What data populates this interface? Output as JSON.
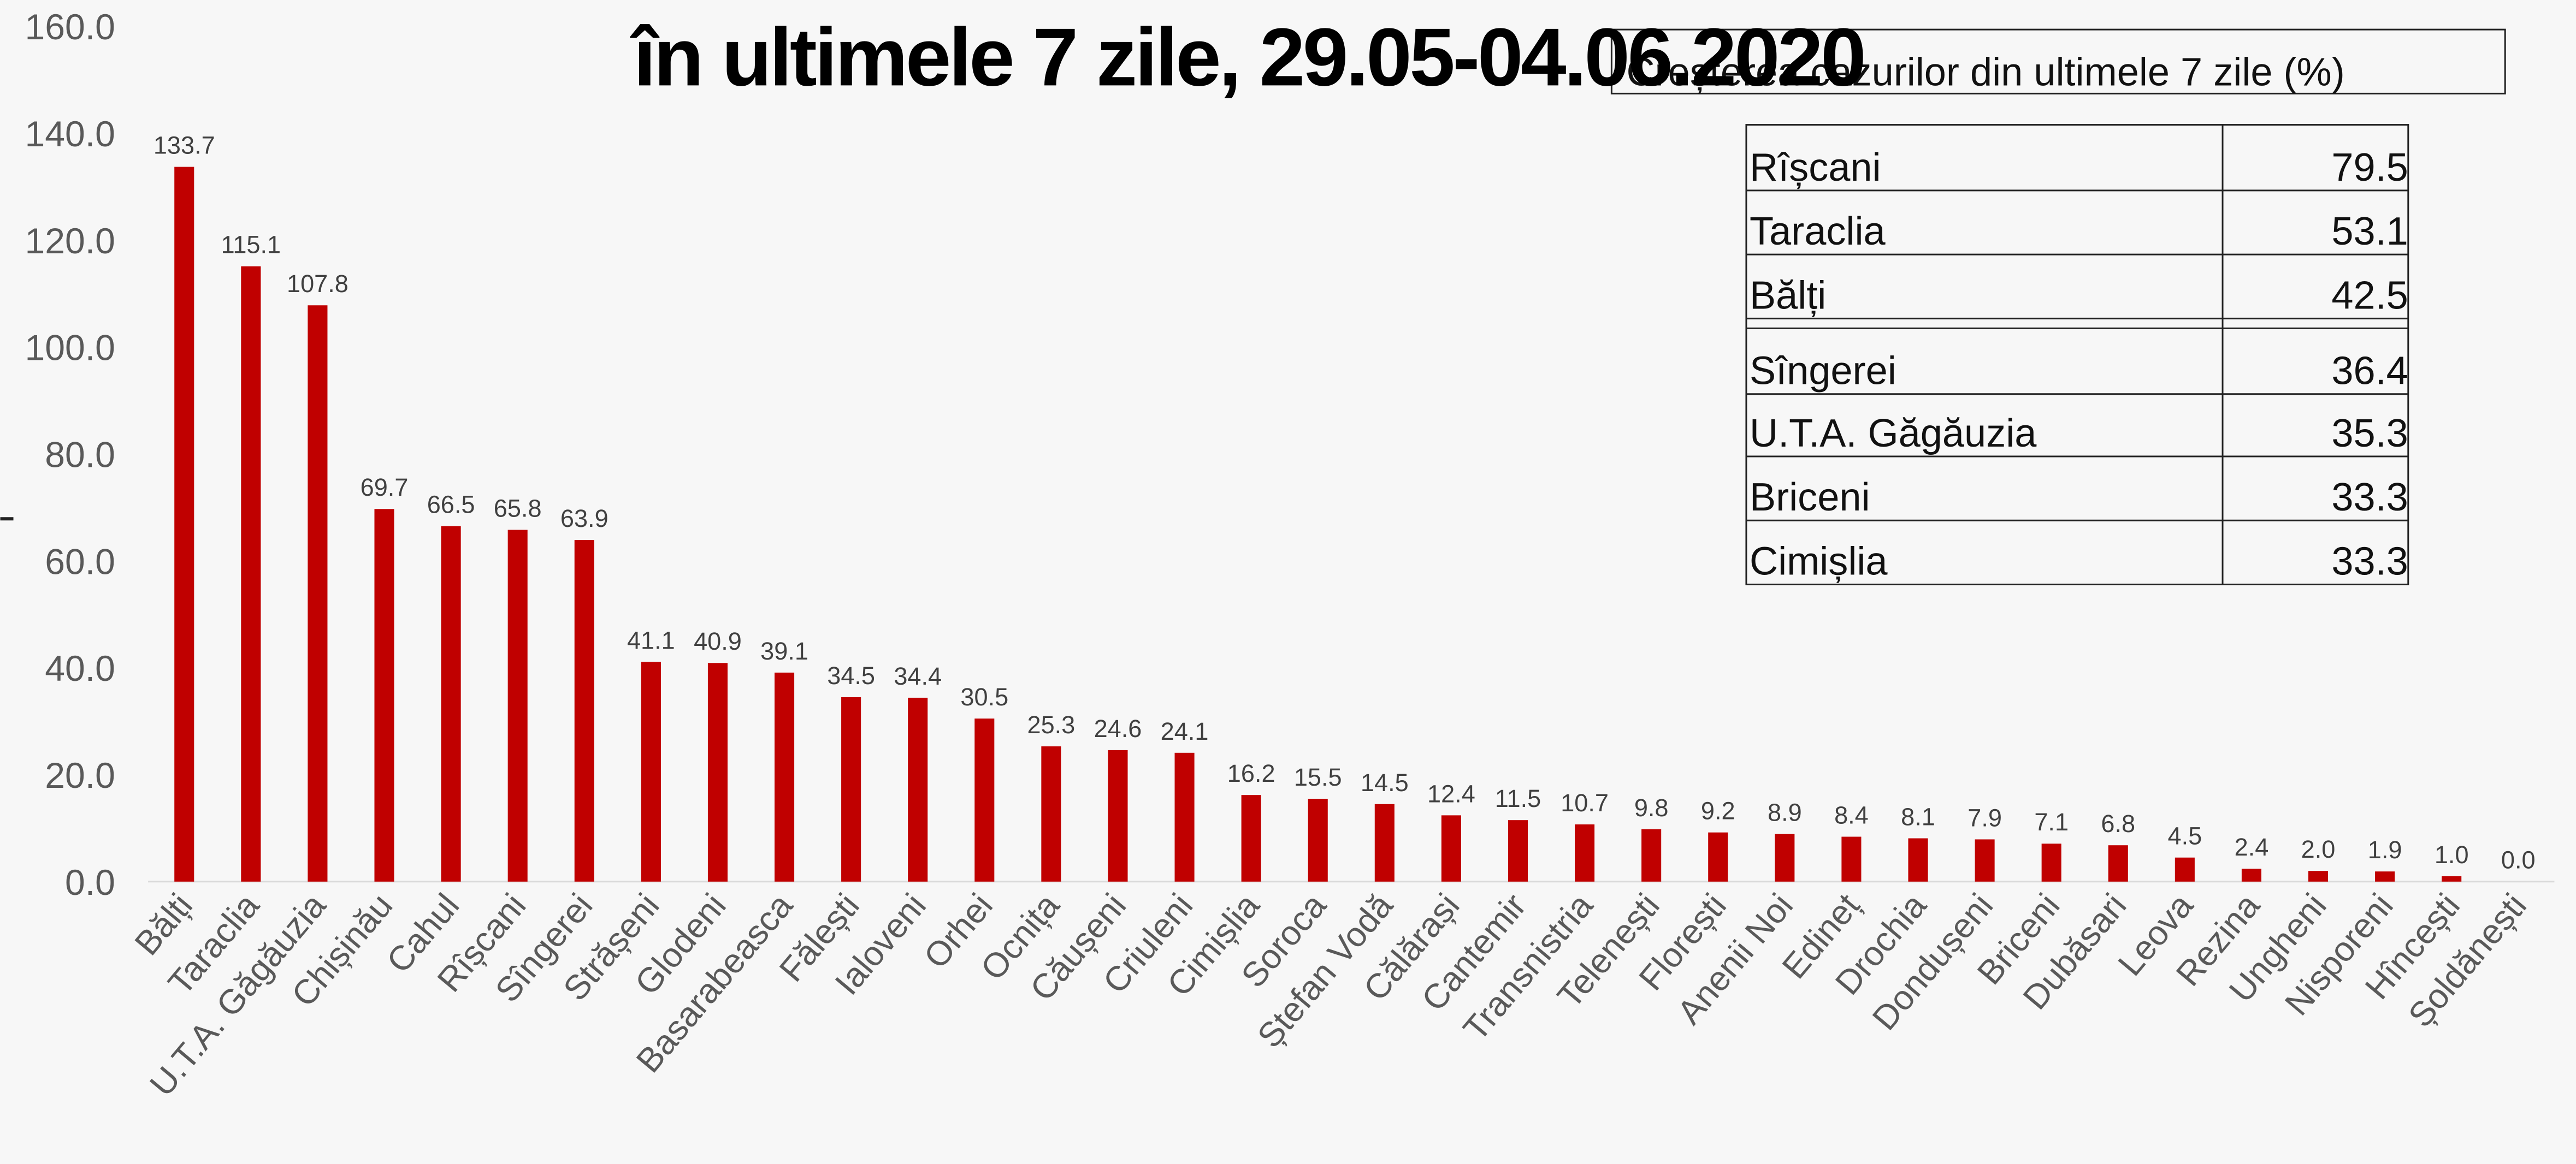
{
  "chart_data": {
    "type": "bar",
    "title": "în ultimele  7 zile,  29.05-04.06.2020",
    "categories": [
      "Bălți",
      "Taraclia",
      "U.T.A. Găgăuzia",
      "Chișinău",
      "Cahul",
      "Rîșcani",
      "Sîngerei",
      "Strășeni",
      "Glodeni",
      "Basarabeasca",
      "Fălești",
      "Ialoveni",
      "Orhei",
      "Ocnița",
      "Căușeni",
      "Criuleni",
      "Cimișlia",
      "Soroca",
      "Ștefan Vodă",
      "Călărași",
      "Cantemir",
      "Transnistria",
      "Telenești",
      "Florești",
      "Anenii Noi",
      "Edineț",
      "Drochia",
      "Dondușeni",
      "Briceni",
      "Dubăsari",
      "Leova",
      "Rezina",
      "Ungheni",
      "Nisporeni",
      "Hîncești",
      "Șoldănești"
    ],
    "values": [
      133.7,
      115.1,
      107.8,
      69.7,
      66.5,
      65.8,
      63.9,
      41.1,
      40.9,
      39.1,
      34.5,
      34.4,
      30.5,
      25.3,
      24.6,
      24.1,
      16.2,
      15.5,
      14.5,
      12.4,
      11.5,
      10.7,
      9.8,
      9.2,
      8.9,
      8.4,
      8.1,
      7.9,
      7.1,
      6.8,
      4.5,
      2.4,
      2.0,
      1.9,
      1.0,
      0.0
    ],
    "value_labels": [
      "133.7",
      "115.1",
      "107.8",
      "69.7",
      "66.5",
      "65.8",
      "63.9",
      "41.1",
      "40.9",
      "39.1",
      "34.5",
      "34.4",
      "30.5",
      "25.3",
      "24.6",
      "24.1",
      "16.2",
      "15.5",
      "14.5",
      "12.4",
      "11.5",
      "10.7",
      "9.8",
      "9.2",
      "8.9",
      "8.4",
      "8.1",
      "7.9",
      "7.1",
      "6.8",
      "4.5",
      "2.4",
      "2.0",
      "1.9",
      "1.0",
      "0.0"
    ],
    "color": "#c00000",
    "ylim": [
      0,
      160
    ],
    "yticks": [
      {
        "value": 0,
        "label": "0.0"
      },
      {
        "value": 20,
        "label": "20.0"
      },
      {
        "value": 40,
        "label": "40.0"
      },
      {
        "value": 60,
        "label": "60.0"
      },
      {
        "value": 80,
        "label": "80.0"
      },
      {
        "value": 100,
        "label": "100.0"
      },
      {
        "value": 120,
        "label": "120.0"
      },
      {
        "value": 140,
        "label": "140.0"
      },
      {
        "value": 160,
        "label": "160.0"
      }
    ],
    "grid": false
  },
  "table": {
    "title": "Creșterea cazurilor din ultimele 7 zile (%)",
    "rows": [
      [
        "Rîșcani",
        "79.5"
      ],
      [
        "Taraclia",
        "53.1"
      ],
      [
        "Bălți",
        "42.5"
      ],
      [
        "Sîngerei",
        "36.4"
      ],
      [
        "U.T.A. Găgăuzia",
        "35.3"
      ],
      [
        "Briceni",
        "33.3"
      ],
      [
        "Cimișlia",
        "33.3"
      ]
    ]
  }
}
